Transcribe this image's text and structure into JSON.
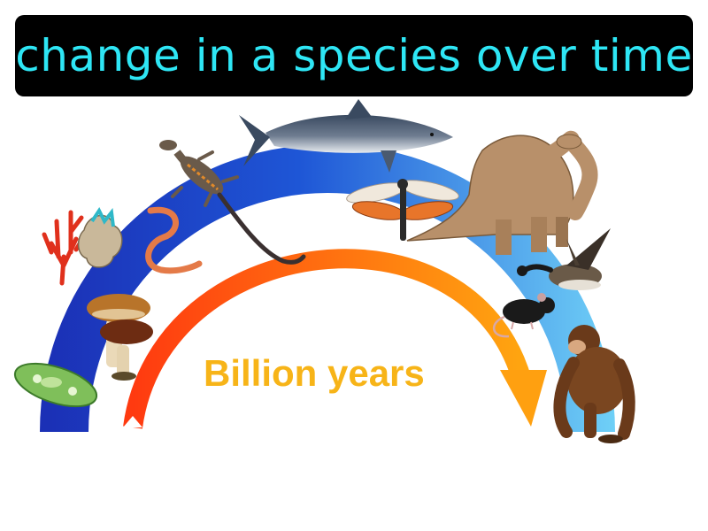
{
  "title": "change in a species over time",
  "timeline_label": "Billion years",
  "colors": {
    "title_bg": "#000000",
    "title_text": "#2ee6f5",
    "band_start": "#1b2fb5",
    "band_end": "#69ccf5",
    "arrow_start": "#ff3d10",
    "arrow_end": "#ffa010",
    "label": "#f7b418"
  },
  "organisms": [
    "paramecium",
    "mushroom",
    "coral",
    "worm",
    "lizard",
    "shark",
    "dragonfly",
    "dinosaur",
    "goose",
    "mouse",
    "chimpanzee"
  ]
}
